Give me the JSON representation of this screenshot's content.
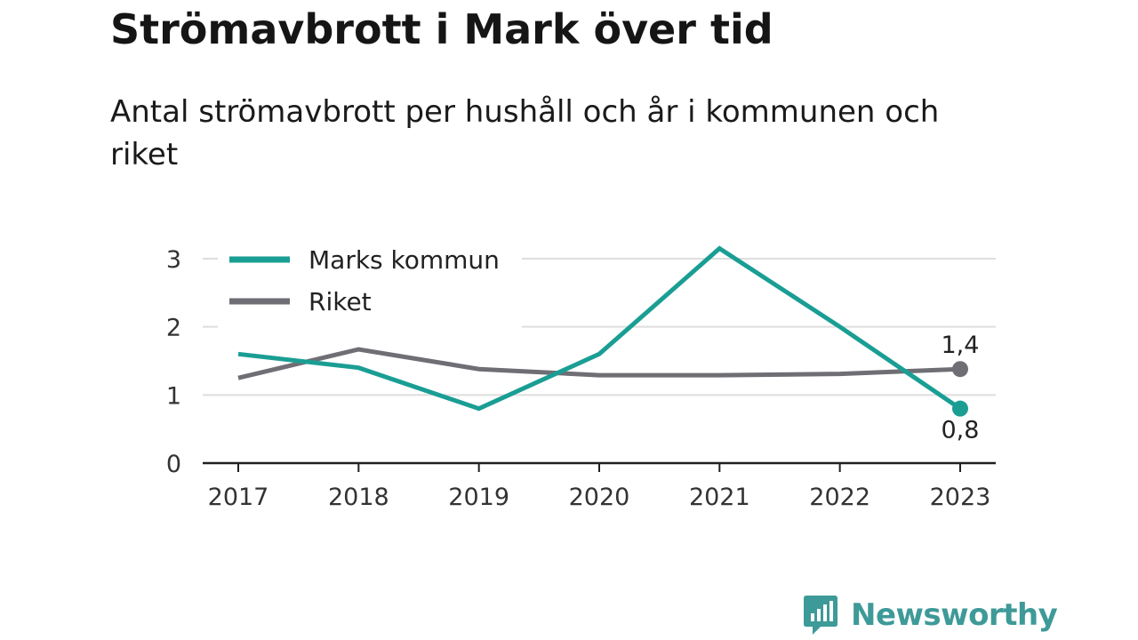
{
  "header": {
    "title": "Strömavbrott i Mark över tid",
    "subtitle": "Antal strömavbrott per hushåll och år i kommunen och riket"
  },
  "chart_data": {
    "type": "line",
    "x": [
      "2017",
      "2018",
      "2019",
      "2020",
      "2021",
      "2022",
      "2023"
    ],
    "series": [
      {
        "name": "Marks kommun",
        "color": "#1a9e94",
        "values": [
          1.6,
          1.4,
          0.8,
          1.6,
          3.15,
          2.0,
          0.8
        ]
      },
      {
        "name": "Riket",
        "color": "#6f6e75",
        "values": [
          1.25,
          1.67,
          1.38,
          1.29,
          1.29,
          1.31,
          1.38
        ]
      }
    ],
    "ylim": [
      0,
      3
    ],
    "yticks": [
      "0",
      "1",
      "2",
      "3"
    ],
    "grid": true,
    "legend": "top-left",
    "end_labels": {
      "Marks kommun": "0,8",
      "Riket": "1,4"
    },
    "xlabel": "",
    "ylabel": ""
  },
  "branding": {
    "logo_text": "Newsworthy",
    "icon": "newsworthy-chart-bubble-icon"
  }
}
